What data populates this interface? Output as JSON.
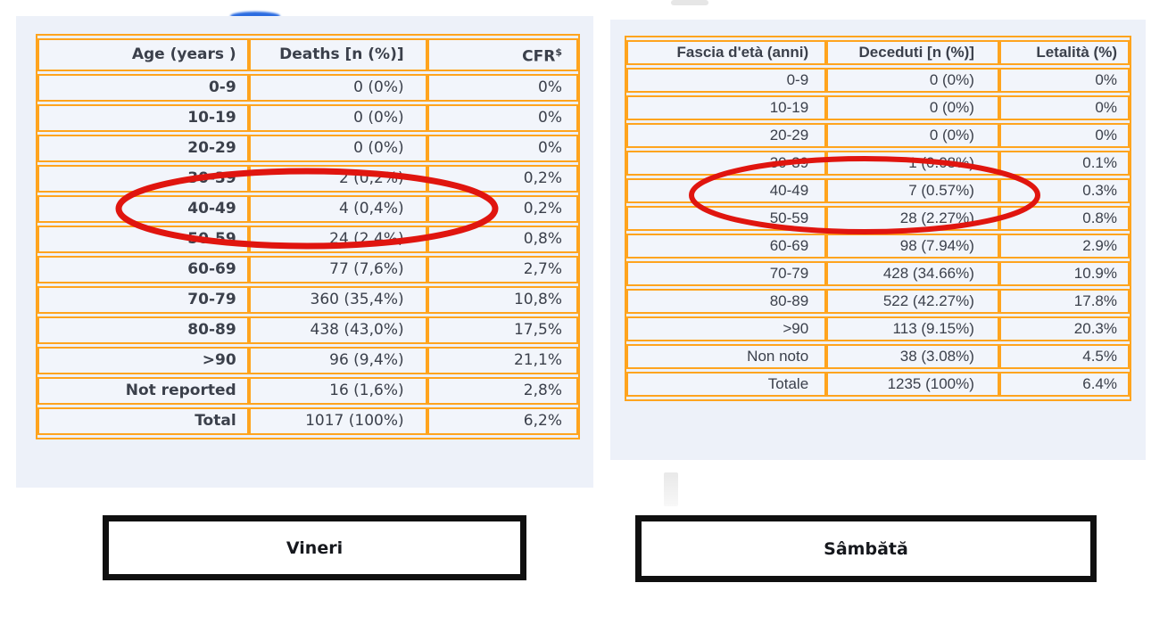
{
  "figure": {
    "description": "Side-by-side comparison of two case-fatality tables with rows 30-39 and 40-49 circled in red",
    "left_caption": "Vineri",
    "right_caption": "Sâmbătă"
  },
  "colors": {
    "table_border": "#ffa41e",
    "panel_background": "#edf1f9",
    "cell_background": "#f2f5fb",
    "text": "#3b404b",
    "highlight_ellipse": "#e0150f",
    "caption_border": "#101010",
    "blue_artifact": "#2a6be0"
  },
  "chart_data": [
    {
      "type": "table",
      "caption": "Vineri",
      "headers": [
        "Age (years )",
        "Deaths [n (%)]",
        "CFR"
      ],
      "cfr_superscript": "$",
      "rows": [
        [
          "0-9",
          "0 (0%)",
          "0%"
        ],
        [
          "10-19",
          "0 (0%)",
          "0%"
        ],
        [
          "20-29",
          "0 (0%)",
          "0%"
        ],
        [
          "30-39",
          "2 (0,2%)",
          "0,2%"
        ],
        [
          "40-49",
          "4 (0,4%)",
          "0,2%"
        ],
        [
          "50-59",
          "24 (2,4%)",
          "0,8%"
        ],
        [
          "60-69",
          "77 (7,6%)",
          "2,7%"
        ],
        [
          "70-79",
          "360 (35,4%)",
          "10,8%"
        ],
        [
          "80-89",
          "438 (43,0%)",
          "17,5%"
        ],
        [
          ">90",
          "96 (9,4%)",
          "21,1%"
        ],
        [
          "Not reported",
          "16 (1,6%)",
          "2,8%"
        ],
        [
          "Total",
          "1017 (100%)",
          "6,2%"
        ]
      ],
      "highlighted_rows": [
        "30-39",
        "40-49"
      ]
    },
    {
      "type": "table",
      "caption": "Sâmbătă",
      "headers": [
        "Fascia d'età (anni)",
        "Deceduti [n (%)]",
        "Letalità (%)"
      ],
      "rows": [
        [
          "0-9",
          "0 (0%)",
          "0%"
        ],
        [
          "10-19",
          "0 (0%)",
          "0%"
        ],
        [
          "20-29",
          "0 (0%)",
          "0%"
        ],
        [
          "30-39",
          "1 (0.08%)",
          "0.1%"
        ],
        [
          "40-49",
          "7 (0.57%)",
          "0.3%"
        ],
        [
          "50-59",
          "28 (2.27%)",
          "0.8%"
        ],
        [
          "60-69",
          "98 (7.94%)",
          "2.9%"
        ],
        [
          "70-79",
          "428 (34.66%)",
          "10.9%"
        ],
        [
          "80-89",
          "522 (42.27%)",
          "17.8%"
        ],
        [
          ">90",
          "113 (9.15%)",
          "20.3%"
        ],
        [
          "Non noto",
          "38 (3.08%)",
          "4.5%"
        ],
        [
          "Totale",
          "1235 (100%)",
          "6.4%"
        ]
      ],
      "highlighted_rows": [
        "30-39",
        "40-49"
      ]
    }
  ]
}
